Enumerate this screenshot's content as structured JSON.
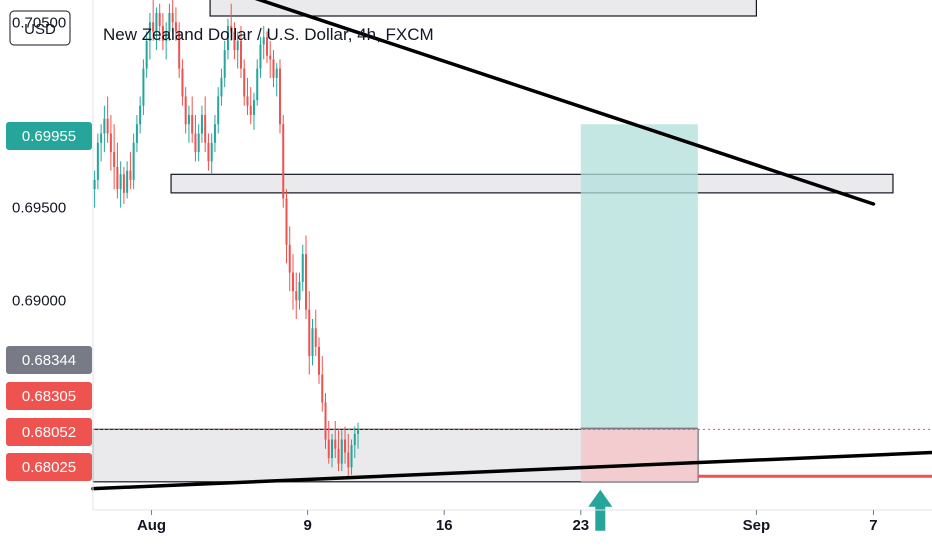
{
  "chart_data": {
    "type": "candlestick",
    "title": "New Zealand Dollar / U.S. Dollar, 4h, FXCM",
    "currency_label": "USD",
    "y_axis_position": "left",
    "y_ticks": [
      {
        "label": "0.70500",
        "value": 0.705
      },
      {
        "label": "0.69500",
        "value": 0.695
      },
      {
        "label": "0.69000",
        "value": 0.69
      }
    ],
    "x_ticks": [
      {
        "label": "Aug",
        "date": "2021-08-01"
      },
      {
        "label": "9",
        "date": "2021-08-09"
      },
      {
        "label": "16",
        "date": "2021-08-16"
      },
      {
        "label": "23",
        "date": "2021-08-23"
      },
      {
        "label": "Sep",
        "date": "2021-09-01"
      },
      {
        "label": "7",
        "date": "2021-09-07"
      }
    ],
    "price_tags": [
      {
        "label": "0.69955",
        "value": 0.69955,
        "color": "#26a69a"
      },
      {
        "label": "0.68344",
        "value": 0.68344,
        "color": "#787b86"
      },
      {
        "label": "0.68305",
        "value": 0.68305,
        "color": "#ef5350"
      },
      {
        "label": "0.68052",
        "value": 0.68052,
        "color": "#ef5350"
      },
      {
        "label": "0.68025",
        "value": 0.68025,
        "color": "#ef5350"
      }
    ],
    "colors": {
      "up": "#26a69a",
      "down": "#ef5350",
      "zone": "#e6e6ea",
      "target": "#b2dfdb",
      "stop": "#f4c7c9",
      "line": "#000000",
      "arrow": "#26a69a"
    },
    "date_range": [
      "2021-07-29",
      "2021-09-10"
    ],
    "price_range": [
      0.6787,
      0.7062
    ],
    "candles_start": "2021-07-29",
    "candles_interval_hours": 4,
    "candles": [
      [
        0.696,
        0.697,
        0.695,
        0.6965
      ],
      [
        0.6965,
        0.699,
        0.696,
        0.6985
      ],
      [
        0.6985,
        0.6995,
        0.6975,
        0.699
      ],
      [
        0.699,
        0.7005,
        0.698,
        0.6998
      ],
      [
        0.6998,
        0.701,
        0.6985,
        0.699
      ],
      [
        0.699,
        0.7,
        0.697,
        0.698
      ],
      [
        0.698,
        0.6995,
        0.696,
        0.6972
      ],
      [
        0.6972,
        0.6985,
        0.6955,
        0.696
      ],
      [
        0.696,
        0.6975,
        0.695,
        0.6968
      ],
      [
        0.6968,
        0.6972,
        0.6952,
        0.6958
      ],
      [
        0.6958,
        0.6975,
        0.6955,
        0.697
      ],
      [
        0.697,
        0.698,
        0.696,
        0.6965
      ],
      [
        0.6965,
        0.699,
        0.696,
        0.6985
      ],
      [
        0.6985,
        0.7,
        0.698,
        0.6995
      ],
      [
        0.6995,
        0.701,
        0.699,
        0.7005
      ],
      [
        0.7005,
        0.703,
        0.7,
        0.7025
      ],
      [
        0.7025,
        0.7045,
        0.702,
        0.704
      ],
      [
        0.704,
        0.7055,
        0.703,
        0.705
      ],
      [
        0.705,
        0.7062,
        0.704,
        0.7045
      ],
      [
        0.7045,
        0.7058,
        0.7035,
        0.7055
      ],
      [
        0.7055,
        0.706,
        0.704,
        0.7048
      ],
      [
        0.7048,
        0.7055,
        0.7035,
        0.704
      ],
      [
        0.704,
        0.705,
        0.703,
        0.7045
      ],
      [
        0.7045,
        0.706,
        0.704,
        0.7055
      ],
      [
        0.7055,
        0.7062,
        0.7045,
        0.705
      ],
      [
        0.705,
        0.7058,
        0.704,
        0.7045
      ],
      [
        0.7045,
        0.705,
        0.702,
        0.7025
      ],
      [
        0.7025,
        0.703,
        0.7005,
        0.701
      ],
      [
        0.701,
        0.7015,
        0.699,
        0.6995
      ],
      [
        0.6995,
        0.7005,
        0.6985,
        0.7
      ],
      [
        0.7,
        0.701,
        0.6985,
        0.699
      ],
      [
        0.699,
        0.7,
        0.6975,
        0.698
      ],
      [
        0.698,
        0.6995,
        0.6975,
        0.699
      ],
      [
        0.699,
        0.7005,
        0.6985,
        0.7
      ],
      [
        0.7,
        0.701,
        0.698,
        0.6985
      ],
      [
        0.6985,
        0.699,
        0.697,
        0.6975
      ],
      [
        0.6975,
        0.699,
        0.6968,
        0.6985
      ],
      [
        0.6985,
        0.7,
        0.698,
        0.6995
      ],
      [
        0.6995,
        0.7015,
        0.699,
        0.701
      ],
      [
        0.701,
        0.7025,
        0.7005,
        0.702
      ],
      [
        0.702,
        0.704,
        0.7015,
        0.7035
      ],
      [
        0.7035,
        0.7052,
        0.703,
        0.7048
      ],
      [
        0.7048,
        0.706,
        0.704,
        0.7045
      ],
      [
        0.7045,
        0.705,
        0.703,
        0.7035
      ],
      [
        0.7035,
        0.7045,
        0.7025,
        0.704
      ],
      [
        0.704,
        0.7048,
        0.702,
        0.7025
      ],
      [
        0.7025,
        0.703,
        0.7005,
        0.701
      ],
      [
        0.701,
        0.702,
        0.7,
        0.7005
      ],
      [
        0.7005,
        0.7015,
        0.6995,
        0.7
      ],
      [
        0.7,
        0.7012,
        0.6992,
        0.7008
      ],
      [
        0.7008,
        0.703,
        0.7005,
        0.7025
      ],
      [
        0.7025,
        0.7042,
        0.702,
        0.7038
      ],
      [
        0.7038,
        0.7048,
        0.703,
        0.7042
      ],
      [
        0.7042,
        0.7045,
        0.7028,
        0.7032
      ],
      [
        0.7032,
        0.704,
        0.702,
        0.703
      ],
      [
        0.703,
        0.7035,
        0.7015,
        0.702
      ],
      [
        0.702,
        0.7028,
        0.701,
        0.7025
      ],
      [
        0.7025,
        0.703,
        0.699,
        0.6995
      ],
      [
        0.6995,
        0.7,
        0.695,
        0.6955
      ],
      [
        0.6955,
        0.696,
        0.692,
        0.693
      ],
      [
        0.693,
        0.694,
        0.6905,
        0.6915
      ],
      [
        0.6915,
        0.6925,
        0.6895,
        0.6905
      ],
      [
        0.6905,
        0.6915,
        0.689,
        0.69
      ],
      [
        0.69,
        0.6915,
        0.6895,
        0.691
      ],
      [
        0.691,
        0.693,
        0.6905,
        0.6925
      ],
      [
        0.6925,
        0.6935,
        0.689,
        0.6895
      ],
      [
        0.6895,
        0.6905,
        0.686,
        0.687
      ],
      [
        0.687,
        0.689,
        0.6865,
        0.6885
      ],
      [
        0.6885,
        0.6895,
        0.687,
        0.6875
      ],
      [
        0.6875,
        0.688,
        0.6855,
        0.686
      ],
      [
        0.686,
        0.687,
        0.684,
        0.6845
      ],
      [
        0.6845,
        0.685,
        0.682,
        0.6825
      ],
      [
        0.6825,
        0.6835,
        0.6812,
        0.6815
      ],
      [
        0.6815,
        0.6828,
        0.681,
        0.6825
      ],
      [
        0.6825,
        0.6835,
        0.6815,
        0.682
      ],
      [
        0.682,
        0.683,
        0.6808,
        0.6812
      ],
      [
        0.6812,
        0.683,
        0.6808,
        0.6825
      ],
      [
        0.6825,
        0.6832,
        0.6812,
        0.6818
      ],
      [
        0.6818,
        0.6828,
        0.6805,
        0.681
      ],
      [
        0.681,
        0.6825,
        0.6806,
        0.6822
      ],
      [
        0.6822,
        0.6832,
        0.6815,
        0.6828
      ],
      [
        0.6828,
        0.6834,
        0.682,
        0.683
      ]
    ],
    "zones": [
      {
        "date_from": "2021-08-02",
        "date_to": "2021-09-08",
        "price_low": 0.6958,
        "price_high": 0.6968
      },
      {
        "date_from": "2021-08-04",
        "date_to": "2021-09-01",
        "price_low": 0.7062,
        "price_high": 0.7062
      },
      {
        "date_from": "2021-07-29",
        "date_to": "2021-08-29",
        "price_low": 0.68022,
        "price_high": 0.68305
      }
    ],
    "trendlines": [
      {
        "date_from": "2021-08-06",
        "price_from": 0.7064,
        "date_to": "2021-09-07",
        "price_to": 0.6952
      },
      {
        "date_from": "2021-07-29",
        "price_from": 0.67985,
        "date_to": "2021-09-10",
        "price_to": 0.6818
      }
    ],
    "position": {
      "entry_date": "2021-08-23",
      "exit_date": "2021-08-29",
      "entry": 0.6831,
      "target": 0.6995,
      "stop": 0.68022
    },
    "arrow": {
      "date": "2021-08-24",
      "direction": "up"
    }
  }
}
